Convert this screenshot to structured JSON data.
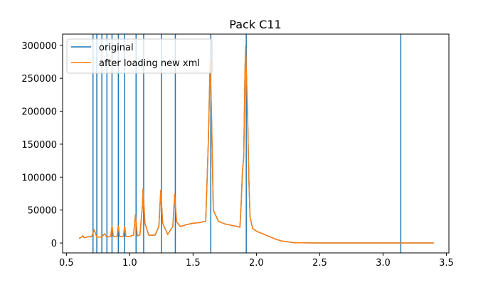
{
  "chart_data": {
    "type": "line",
    "title": "Pack C11",
    "xlabel": "",
    "ylabel": "",
    "xlim": [
      0.47,
      3.52
    ],
    "ylim": [
      -15000,
      317000
    ],
    "xticks": [
      0.5,
      1.0,
      1.5,
      2.0,
      2.5,
      3.0,
      3.5
    ],
    "xtick_labels": [
      "0.5",
      "1.0",
      "1.5",
      "2.0",
      "2.5",
      "3.0",
      "3.5"
    ],
    "yticks": [
      0,
      50000,
      100000,
      150000,
      200000,
      250000,
      300000
    ],
    "ytick_labels": [
      "0",
      "50000",
      "100000",
      "150000",
      "200000",
      "250000",
      "300000"
    ],
    "grid": false,
    "legend_position": "upper-left",
    "colors": {
      "original": "#1f77b4",
      "after": "#ff7f0e"
    },
    "vertical_lines_x": [
      0.71,
      0.74,
      0.78,
      0.82,
      0.86,
      0.91,
      0.96,
      1.05,
      1.11,
      1.25,
      1.36,
      1.64,
      1.92,
      3.14
    ],
    "series": [
      {
        "name": "original",
        "x": [
          0.6,
          0.62,
          0.63,
          0.64,
          0.66,
          0.7,
          0.72,
          0.74,
          0.78,
          0.8,
          0.82,
          0.85,
          0.86,
          0.87,
          0.9,
          0.91,
          0.92,
          0.95,
          0.96,
          0.97,
          1.0,
          1.03,
          1.045,
          1.06,
          1.08,
          1.1,
          1.105,
          1.12,
          1.15,
          1.2,
          1.23,
          1.245,
          1.26,
          1.3,
          1.34,
          1.355,
          1.37,
          1.4,
          1.45,
          1.5,
          1.55,
          1.6,
          1.62,
          1.635,
          1.645,
          1.66,
          1.7,
          1.75,
          1.8,
          1.85,
          1.87,
          1.88,
          1.89,
          1.9,
          1.91,
          1.915,
          1.925,
          1.93,
          1.94,
          1.95,
          1.97,
          2.0,
          2.05,
          2.1,
          2.15,
          2.2,
          2.3,
          2.4,
          2.5,
          3.0,
          3.4
        ],
        "y": [
          7000,
          9000,
          11000,
          8000,
          9000,
          10000,
          20000,
          9000,
          9000,
          14000,
          9000,
          10000,
          26000,
          10000,
          10000,
          26000,
          10000,
          10000,
          25000,
          10000,
          10000,
          12000,
          43000,
          11000,
          12000,
          55000,
          82000,
          30000,
          12000,
          12000,
          25000,
          80000,
          30000,
          13000,
          25000,
          74000,
          32000,
          25000,
          28000,
          30000,
          31000,
          33000,
          150000,
          275000,
          200000,
          50000,
          33000,
          29000,
          27000,
          25000,
          24000,
          60000,
          110000,
          130000,
          260000,
          300000,
          230000,
          200000,
          100000,
          40000,
          22000,
          18000,
          14000,
          10000,
          6000,
          3000,
          500,
          200,
          100,
          50,
          50
        ]
      },
      {
        "name": "after loading new xml",
        "x": [
          0.6,
          0.62,
          0.63,
          0.64,
          0.66,
          0.7,
          0.72,
          0.74,
          0.78,
          0.8,
          0.82,
          0.85,
          0.86,
          0.87,
          0.9,
          0.91,
          0.92,
          0.95,
          0.96,
          0.97,
          1.0,
          1.03,
          1.045,
          1.06,
          1.08,
          1.1,
          1.105,
          1.12,
          1.15,
          1.2,
          1.23,
          1.245,
          1.26,
          1.3,
          1.34,
          1.355,
          1.37,
          1.4,
          1.45,
          1.5,
          1.55,
          1.6,
          1.62,
          1.635,
          1.645,
          1.66,
          1.7,
          1.75,
          1.8,
          1.85,
          1.87,
          1.88,
          1.89,
          1.9,
          1.91,
          1.915,
          1.925,
          1.93,
          1.94,
          1.95,
          1.97,
          2.0,
          2.05,
          2.1,
          2.15,
          2.2,
          2.3,
          2.4,
          2.5,
          3.0,
          3.4
        ],
        "y": [
          7000,
          9000,
          11000,
          8000,
          9000,
          10000,
          20000,
          9000,
          9000,
          14000,
          9000,
          10000,
          26000,
          10000,
          10000,
          26000,
          10000,
          10000,
          25000,
          10000,
          10000,
          12000,
          43000,
          11000,
          12000,
          55000,
          82000,
          30000,
          12000,
          12000,
          25000,
          80000,
          30000,
          13000,
          25000,
          74000,
          32000,
          25000,
          28000,
          30000,
          31000,
          33000,
          150000,
          275000,
          200000,
          50000,
          33000,
          29000,
          27000,
          25000,
          24000,
          60000,
          110000,
          130000,
          260000,
          300000,
          230000,
          200000,
          100000,
          40000,
          22000,
          18000,
          14000,
          10000,
          6000,
          3000,
          500,
          200,
          100,
          50,
          50
        ]
      }
    ]
  }
}
